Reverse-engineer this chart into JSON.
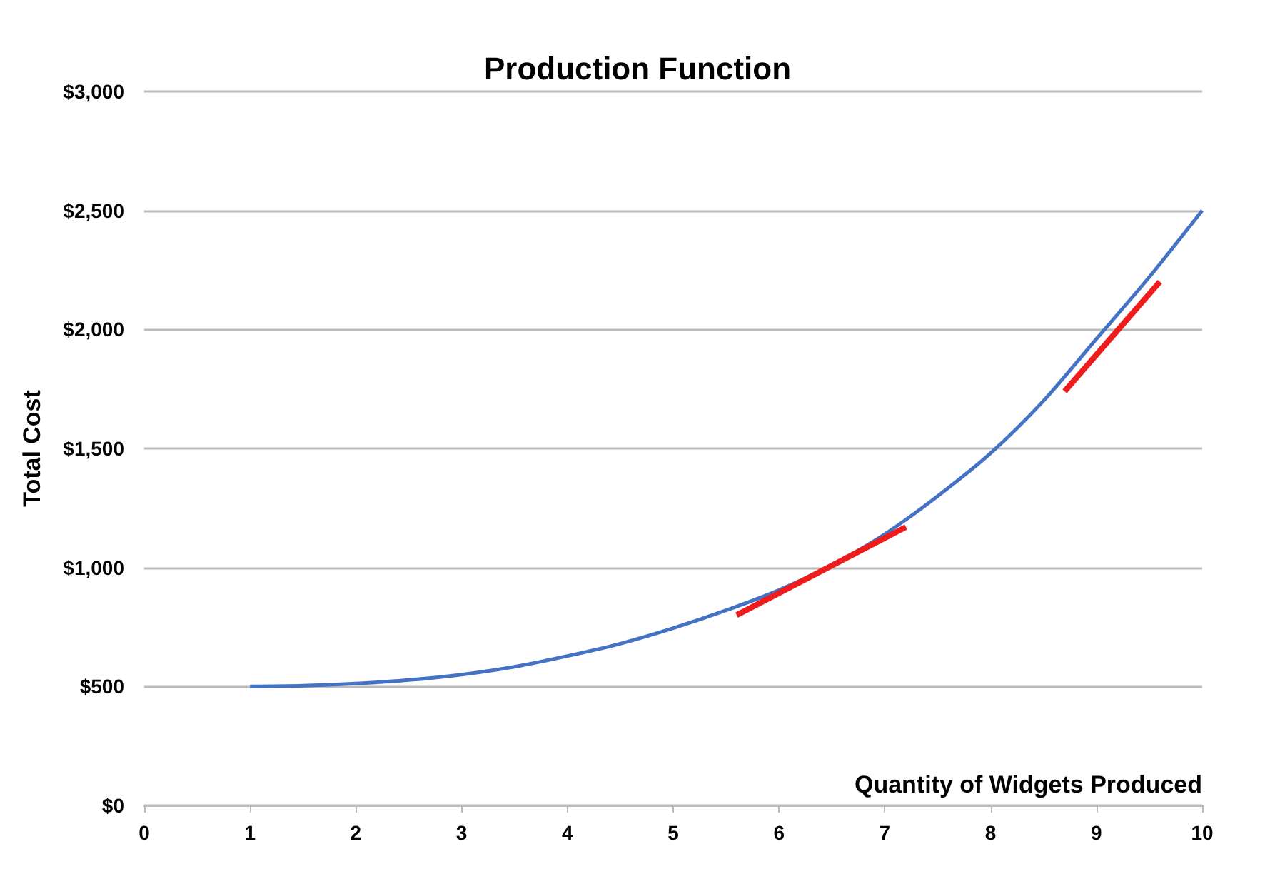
{
  "chart_data": {
    "type": "line",
    "title": "Production Function",
    "xlabel": "Quantity of Widgets Produced",
    "ylabel": "Total Cost",
    "series": [
      {
        "color": "#4472c4",
        "x": [
          1,
          1.5,
          2,
          2.5,
          3,
          3.5,
          4,
          4.5,
          5,
          5.5,
          6,
          6.5,
          7,
          7.5,
          8,
          8.5,
          9,
          9.5,
          10
        ],
        "values": [
          500,
          503,
          512,
          527,
          550,
          583,
          628,
          680,
          745,
          820,
          905,
          1010,
          1140,
          1300,
          1480,
          1700,
          1960,
          2220,
          2500
        ]
      },
      {
        "color": "#ee1c1c",
        "x": [
          5.6,
          7.2
        ],
        "values": [
          800,
          1170
        ]
      },
      {
        "color": "#ee1c1c",
        "x": [
          8.7,
          9.6
        ],
        "values": [
          1740,
          2200
        ]
      }
    ],
    "xlim": [
      0,
      10
    ],
    "xticks": [
      0,
      1,
      2,
      3,
      4,
      5,
      6,
      7,
      8,
      9,
      10
    ],
    "ylim": [
      0,
      3000
    ],
    "yticks": [
      {
        "value": 0,
        "label": "$0"
      },
      {
        "value": 500,
        "label": "$500"
      },
      {
        "value": 1000,
        "label": "$1,000"
      },
      {
        "value": 1500,
        "label": "$1,500"
      },
      {
        "value": 2000,
        "label": "$2,000"
      },
      {
        "value": 2500,
        "label": "$2,500"
      },
      {
        "value": 3000,
        "label": "$3,000"
      }
    ],
    "grid": "y",
    "marker": "none",
    "line_style": "solid"
  }
}
